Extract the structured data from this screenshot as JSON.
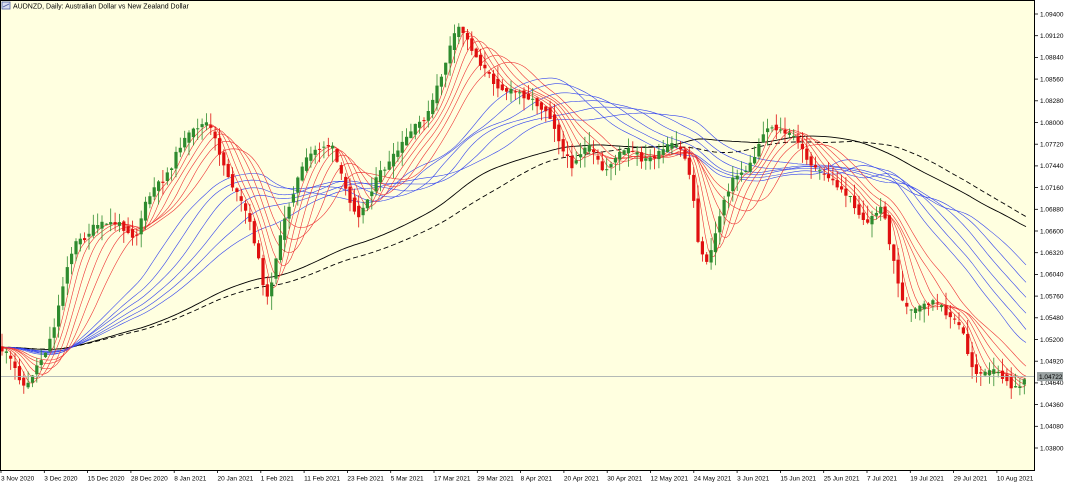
{
  "header": {
    "title": "AUDNZD, Daily:  Australian Dollar vs New Zealand Dollar",
    "icon": "chart-window-icon"
  },
  "colors": {
    "plot_bg": "#FFFFE0",
    "bull": "#2E8B2E",
    "bear": "#E01010",
    "fast_ma": "#EE3333",
    "slow_ma": "#3344EE",
    "long_ma": "#000000",
    "frame": "#000000",
    "price_line": "#AAB0B0"
  },
  "current_price": "1.04722",
  "chart_data": {
    "type": "candlestick",
    "title": "AUDNZD, Daily:  Australian Dollar vs New Zealand Dollar",
    "xlabel": "",
    "ylabel": "",
    "ylim": [
      1.0368,
      1.0948
    ],
    "x_tick_labels": [
      "3 Nov 2020",
      "3 Dec 2020",
      "15 Dec 2020",
      "28 Dec 2020",
      "8 Jan 2021",
      "20 Jan 2021",
      "1 Feb 2021",
      "11 Feb 2021",
      "23 Feb 2021",
      "5 Mar 2021",
      "17 Mar 2021",
      "29 Mar 2021",
      "8 Apr 2021",
      "20 Apr 2021",
      "30 Apr 2021",
      "12 May 2021",
      "24 May 2021",
      "3 Jun 2021",
      "15 Jun 2021",
      "25 Jun 2021",
      "7 Jul 2021",
      "19 Jul 2021",
      "29 Jul 2021",
      "10 Aug 2021"
    ],
    "y_tick_labels": [
      "1.09400",
      "1.09120",
      "1.08840",
      "1.08560",
      "1.08280",
      "1.08000",
      "1.07720",
      "1.07440",
      "1.07160",
      "1.06880",
      "1.06600",
      "1.06320",
      "1.06040",
      "1.05760",
      "1.05480",
      "1.05200",
      "1.04920",
      "1.04640",
      "1.04360",
      "1.04080",
      "1.03800"
    ],
    "y_ticks": [
      1.094,
      1.0912,
      1.0884,
      1.0856,
      1.0828,
      1.08,
      1.0772,
      1.0744,
      1.0716,
      1.0688,
      1.066,
      1.0632,
      1.0604,
      1.0576,
      1.0548,
      1.052,
      1.0492,
      1.0464,
      1.0436,
      1.0408,
      1.038
    ],
    "price_path": [
      [
        0,
        1.051
      ],
      [
        10,
        1.05
      ],
      [
        20,
        1.0475
      ],
      [
        28,
        1.0455
      ],
      [
        36,
        1.048
      ],
      [
        46,
        1.05
      ],
      [
        55,
        1.053
      ],
      [
        62,
        1.057
      ],
      [
        70,
        1.062
      ],
      [
        78,
        1.0645
      ],
      [
        86,
        1.065
      ],
      [
        96,
        1.0665
      ],
      [
        108,
        1.067
      ],
      [
        120,
        1.067
      ],
      [
        130,
        1.066
      ],
      [
        138,
        1.065
      ],
      [
        146,
        1.069
      ],
      [
        156,
        1.0715
      ],
      [
        165,
        1.0725
      ],
      [
        174,
        1.0745
      ],
      [
        182,
        1.077
      ],
      [
        192,
        1.0785
      ],
      [
        200,
        1.0795
      ],
      [
        210,
        1.08
      ],
      [
        218,
        1.0775
      ],
      [
        226,
        1.0745
      ],
      [
        234,
        1.072
      ],
      [
        242,
        1.07
      ],
      [
        250,
        1.068
      ],
      [
        258,
        1.064
      ],
      [
        264,
        1.06
      ],
      [
        270,
        1.057
      ],
      [
        278,
        1.0625
      ],
      [
        286,
        1.067
      ],
      [
        294,
        1.0705
      ],
      [
        302,
        1.0735
      ],
      [
        310,
        1.0755
      ],
      [
        318,
        1.0765
      ],
      [
        326,
        1.077
      ],
      [
        334,
        1.077
      ],
      [
        340,
        1.0745
      ],
      [
        346,
        1.072
      ],
      [
        352,
        1.07
      ],
      [
        360,
        1.068
      ],
      [
        366,
        1.069
      ],
      [
        374,
        1.0715
      ],
      [
        382,
        1.0735
      ],
      [
        390,
        1.0745
      ],
      [
        398,
        1.076
      ],
      [
        406,
        1.0775
      ],
      [
        414,
        1.079
      ],
      [
        422,
        1.08
      ],
      [
        430,
        1.081
      ],
      [
        438,
        1.084
      ],
      [
        446,
        1.087
      ],
      [
        454,
        1.0905
      ],
      [
        462,
        1.0925
      ],
      [
        470,
        1.0905
      ],
      [
        478,
        1.0885
      ],
      [
        486,
        1.087
      ],
      [
        494,
        1.0855
      ],
      [
        502,
        1.0845
      ],
      [
        510,
        1.084
      ],
      [
        518,
        1.084
      ],
      [
        526,
        1.0835
      ],
      [
        534,
        1.083
      ],
      [
        542,
        1.082
      ],
      [
        550,
        1.0815
      ],
      [
        558,
        1.079
      ],
      [
        566,
        1.076
      ],
      [
        574,
        1.0745
      ],
      [
        582,
        1.076
      ],
      [
        590,
        1.077
      ],
      [
        598,
        1.0755
      ],
      [
        606,
        1.0735
      ],
      [
        614,
        1.075
      ],
      [
        622,
        1.076
      ],
      [
        630,
        1.0765
      ],
      [
        638,
        1.076
      ],
      [
        646,
        1.075
      ],
      [
        654,
        1.0755
      ],
      [
        662,
        1.076
      ],
      [
        670,
        1.077
      ],
      [
        678,
        1.077
      ],
      [
        686,
        1.076
      ],
      [
        694,
        1.072
      ],
      [
        700,
        1.065
      ],
      [
        706,
        1.062
      ],
      [
        712,
        1.0625
      ],
      [
        718,
        1.066
      ],
      [
        726,
        1.07
      ],
      [
        734,
        1.0725
      ],
      [
        742,
        1.0735
      ],
      [
        750,
        1.074
      ],
      [
        758,
        1.076
      ],
      [
        766,
        1.079
      ],
      [
        774,
        1.0795
      ],
      [
        782,
        1.079
      ],
      [
        790,
        1.0785
      ],
      [
        798,
        1.078
      ],
      [
        806,
        1.076
      ],
      [
        814,
        1.0745
      ],
      [
        822,
        1.0735
      ],
      [
        830,
        1.073
      ],
      [
        838,
        1.072
      ],
      [
        846,
        1.071
      ],
      [
        854,
        1.07
      ],
      [
        862,
        1.068
      ],
      [
        870,
        1.067
      ],
      [
        878,
        1.0685
      ],
      [
        886,
        1.069
      ],
      [
        892,
        1.064
      ],
      [
        898,
        1.061
      ],
      [
        904,
        1.057
      ],
      [
        912,
        1.0555
      ],
      [
        920,
        1.056
      ],
      [
        928,
        1.0565
      ],
      [
        936,
        1.057
      ],
      [
        944,
        1.056
      ],
      [
        952,
        1.055
      ],
      [
        960,
        1.054
      ],
      [
        966,
        1.0525
      ],
      [
        972,
        1.049
      ],
      [
        978,
        1.0478
      ],
      [
        986,
        1.0475
      ],
      [
        994,
        1.048
      ],
      [
        1002,
        1.0475
      ],
      [
        1008,
        1.047
      ],
      [
        1014,
        1.046
      ],
      [
        1020,
        1.0455
      ],
      [
        1027,
        1.0472
      ]
    ],
    "moving_averages": {
      "fast_count": 6,
      "slow_count": 6,
      "long": "dual black (solid + dashed)"
    },
    "grid": false,
    "legend": "none"
  }
}
